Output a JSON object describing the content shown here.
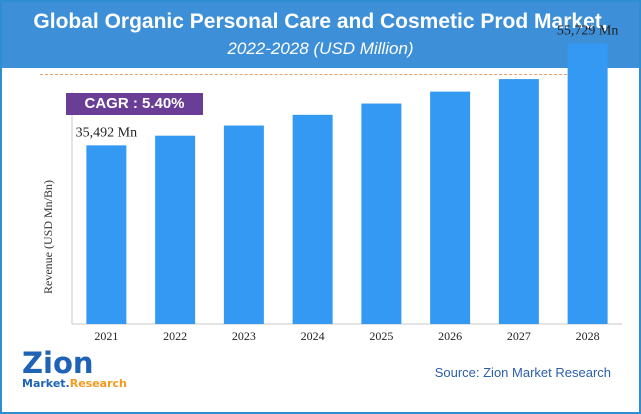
{
  "header": {
    "title": "Global Organic Personal Care and Cosmetic Prod Market,",
    "subtitle": "2022-2028 (USD Million)"
  },
  "cagr": "CAGR : 5.40%",
  "source": "Source: Zion Market Research",
  "logo": {
    "name": "Zion",
    "market": "Market.",
    "research": "Research"
  },
  "colors": {
    "bar": "#3399f3",
    "header": "#3d8fd8",
    "cagr_bg": "#6a3d97",
    "axis": "#c8c8c8"
  },
  "chart_data": {
    "type": "bar",
    "title": "Global Organic Personal Care and Cosmetic Prod Market, 2022-2028 (USD Million)",
    "xlabel": "",
    "ylabel": "Revenue (USD Mn/Bn)",
    "categories": [
      "2021",
      "2022",
      "2023",
      "2024",
      "2025",
      "2026",
      "2027",
      "2028"
    ],
    "values": [
      35492,
      37410,
      39430,
      41560,
      43800,
      46170,
      48660,
      55729
    ],
    "data_labels": [
      {
        "index": 0,
        "text": "35,492 Mn"
      },
      {
        "index": 7,
        "text": "55,729 Mn"
      }
    ],
    "ylim": [
      0,
      60000
    ],
    "grid": false
  }
}
